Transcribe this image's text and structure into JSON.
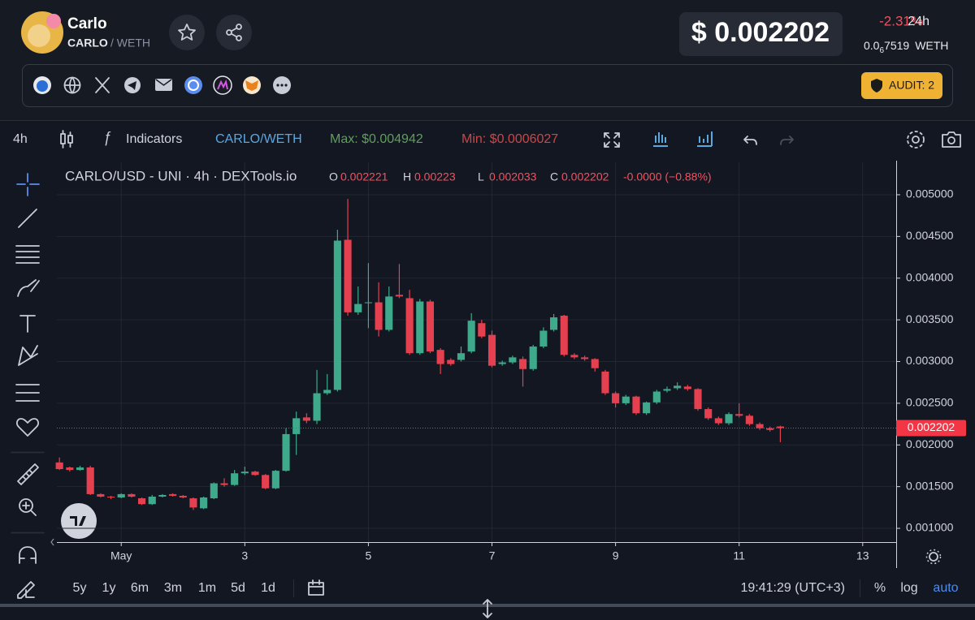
{
  "header": {
    "name": "Carlo",
    "symbol": "CARLO",
    "quote": "/ WETH",
    "price": "$ 0.002202",
    "change": "-2.31%",
    "period": "24h",
    "weth_price": {
      "lead": "0.0",
      "sub": "6",
      "digits": "7519",
      "unit": "WETH"
    },
    "audit": "AUDIT: 2"
  },
  "toolbar": {
    "interval": "4h",
    "indicators": "Indicators",
    "pair": "CARLO/WETH",
    "max": "Max: $0.004942",
    "min": "Min: $0.0006027"
  },
  "bottom": {
    "ranges": [
      "5y",
      "1y",
      "6m",
      "3m",
      "1m",
      "5d",
      "1d"
    ],
    "time": "19:41:29 (UTC+3)",
    "percent": "%",
    "log": "log",
    "auto": "auto"
  },
  "chart_data": {
    "type": "candlestick",
    "title": "CARLO/USD - UNI · 4h · DEXTools.io",
    "legend_labels": [
      "O",
      "H",
      "L",
      "C"
    ],
    "change_label": "-0.0000 (−0.88%)",
    "up_color": "#3fa98b",
    "down_color": "#e5404f",
    "grid": true,
    "log_scale": false,
    "last_price": 0.002202,
    "last_price_color": "#f23645",
    "x": [
      -24,
      -20,
      -16,
      -12,
      -8,
      -4,
      0,
      4,
      8,
      12,
      16,
      20,
      24,
      28,
      32,
      36,
      40,
      44,
      48,
      52,
      56,
      60,
      64,
      68,
      72,
      76,
      80,
      84,
      88,
      92,
      96,
      100,
      104,
      108,
      112,
      116,
      120,
      124,
      128,
      132,
      136,
      140,
      144,
      148,
      152,
      156,
      160,
      164,
      168,
      172,
      176,
      180,
      184,
      188,
      192,
      196,
      200,
      204,
      208,
      212,
      216,
      220,
      224,
      228,
      232,
      236,
      240,
      244,
      248,
      252,
      256
    ],
    "open": [
      0.00179,
      0.00173,
      0.0017,
      0.00173,
      0.00141,
      0.00138,
      0.00137,
      0.00141,
      0.00136,
      0.00129,
      0.00138,
      0.00141,
      0.00139,
      0.00136,
      0.00124,
      0.00136,
      0.00154,
      0.00152,
      0.00166,
      0.00168,
      0.00164,
      0.00148,
      0.00169,
      0.00213,
      0.00233,
      0.00229,
      0.00262,
      0.00266,
      0.00446,
      0.00359,
      0.0037,
      0.00371,
      0.00338,
      0.0038,
      0.00376,
      0.0031,
      0.00372,
      0.00314,
      0.00302,
      0.00302,
      0.00312,
      0.00346,
      0.00332,
      0.00297,
      0.00299,
      0.00303,
      0.00291,
      0.00318,
      0.00338,
      0.00355,
      0.00308,
      0.00305,
      0.00303,
      0.00288,
      0.00262,
      0.0025,
      0.00258,
      0.00238,
      0.00251,
      0.00265,
      0.00268,
      0.0027,
      0.00267,
      0.00243,
      0.00232,
      0.00226,
      0.00237,
      0.00235,
      0.00225,
      0.0022,
      0.002221
    ],
    "high": [
      0.00185,
      0.00174,
      0.00175,
      0.00175,
      0.00142,
      0.00139,
      0.00142,
      0.00142,
      0.00137,
      0.0014,
      0.00141,
      0.00142,
      0.0014,
      0.00137,
      0.00138,
      0.00155,
      0.0016,
      0.0017,
      0.00174,
      0.00169,
      0.00165,
      0.0017,
      0.0022,
      0.0024,
      0.00238,
      0.0029,
      0.00285,
      0.00458,
      0.00495,
      0.0039,
      0.00418,
      0.00395,
      0.0039,
      0.00417,
      0.00386,
      0.00375,
      0.00374,
      0.00316,
      0.00304,
      0.00318,
      0.00358,
      0.0035,
      0.00337,
      0.00301,
      0.00307,
      0.00306,
      0.0032,
      0.00341,
      0.00357,
      0.00356,
      0.0031,
      0.00307,
      0.00304,
      0.0029,
      0.00264,
      0.0026,
      0.00259,
      0.00252,
      0.00266,
      0.0027,
      0.00275,
      0.00272,
      0.00268,
      0.00245,
      0.00234,
      0.00239,
      0.0025,
      0.00237,
      0.00227,
      0.00222,
      0.00223
    ],
    "low": [
      0.0017,
      0.00168,
      0.00169,
      0.0014,
      0.00137,
      0.00135,
      0.00136,
      0.00137,
      0.00128,
      0.00128,
      0.00137,
      0.00138,
      0.00136,
      0.00122,
      0.00123,
      0.00135,
      0.0015,
      0.00151,
      0.00164,
      0.00163,
      0.00147,
      0.00147,
      0.00168,
      0.00188,
      0.00226,
      0.00225,
      0.0026,
      0.00264,
      0.00355,
      0.00356,
      0.0034,
      0.0033,
      0.00336,
      0.00376,
      0.00308,
      0.00308,
      0.0031,
      0.00285,
      0.00295,
      0.003,
      0.0031,
      0.00328,
      0.00293,
      0.00295,
      0.00297,
      0.0027,
      0.00289,
      0.00316,
      0.00336,
      0.00306,
      0.00303,
      0.00301,
      0.00288,
      0.0026,
      0.00245,
      0.00248,
      0.00236,
      0.00236,
      0.00249,
      0.00263,
      0.00266,
      0.00265,
      0.00241,
      0.0023,
      0.00224,
      0.00224,
      0.00233,
      0.00223,
      0.00218,
      0.00216,
      0.002033
    ],
    "close": [
      0.00171,
      0.0017,
      0.00173,
      0.00141,
      0.00138,
      0.00137,
      0.00141,
      0.00138,
      0.00129,
      0.00138,
      0.0014,
      0.00139,
      0.00137,
      0.00125,
      0.00137,
      0.00154,
      0.00152,
      0.00166,
      0.00168,
      0.00164,
      0.00148,
      0.00169,
      0.00213,
      0.00232,
      0.00229,
      0.00262,
      0.00266,
      0.00445,
      0.00359,
      0.00369,
      0.00371,
      0.00338,
      0.00378,
      0.00378,
      0.0031,
      0.00372,
      0.00312,
      0.00297,
      0.00297,
      0.0031,
      0.00349,
      0.0033,
      0.00295,
      0.00299,
      0.00305,
      0.00291,
      0.00318,
      0.00337,
      0.00353,
      0.00308,
      0.00305,
      0.00303,
      0.00292,
      0.00262,
      0.0025,
      0.00258,
      0.00238,
      0.00251,
      0.00264,
      0.00267,
      0.00271,
      0.00267,
      0.00243,
      0.00232,
      0.00226,
      0.00237,
      0.00235,
      0.00225,
      0.0022,
      0.00218,
      0.002202
    ],
    "xlim": [
      -25,
      301
    ],
    "xticks": [
      {
        "value": 0,
        "label": "May"
      },
      {
        "value": 48,
        "label": "3"
      },
      {
        "value": 96,
        "label": "5"
      },
      {
        "value": 144,
        "label": "7"
      },
      {
        "value": 192,
        "label": "9"
      },
      {
        "value": 240,
        "label": "11"
      },
      {
        "value": 288,
        "label": "13"
      }
    ],
    "ylim": [
      0.000835,
      0.005389
    ],
    "yticks": [
      {
        "value": 0.001,
        "label": "0.001000"
      },
      {
        "value": 0.0015,
        "label": "0.001500"
      },
      {
        "value": 0.002,
        "label": "0.002000"
      },
      {
        "value": 0.0025,
        "label": "0.002500"
      },
      {
        "value": 0.003,
        "label": "0.003000"
      },
      {
        "value": 0.0035,
        "label": "0.003500"
      },
      {
        "value": 0.004,
        "label": "0.004000"
      },
      {
        "value": 0.0045,
        "label": "0.004500"
      },
      {
        "value": 0.005,
        "label": "0.005000"
      }
    ]
  }
}
